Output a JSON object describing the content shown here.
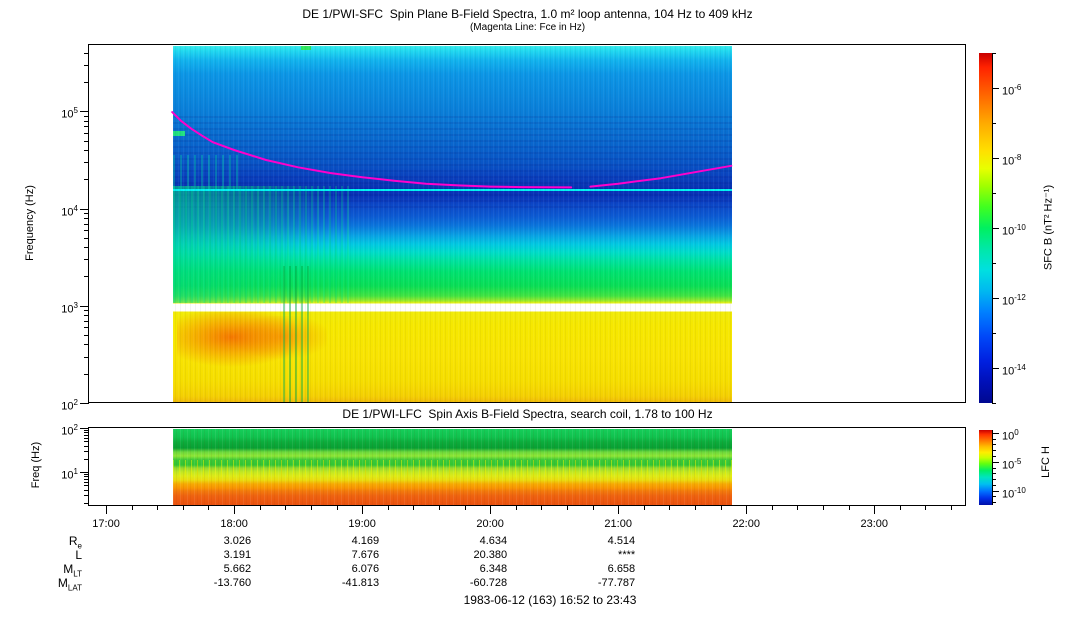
{
  "header": {
    "title": "DE 1/PWI-SFC  Spin Plane B-Field Spectra, 1.0 m² loop antenna, 104 Hz to 409 kHz",
    "subtitle": "(Magenta Line: Fce in Hz)"
  },
  "xaxis": {
    "start_time": "16:52",
    "end_time": "23:43",
    "labels": [
      "17:00",
      "18:00",
      "19:00",
      "20:00",
      "21:00",
      "22:00",
      "23:00"
    ],
    "minor_tick_minutes": 12,
    "data_coverage": [
      "17:31",
      "21:53"
    ]
  },
  "chart_data": [
    {
      "type": "heatmap",
      "panel": "SFC",
      "title": "DE 1/PWI-SFC  Spin Plane B-Field Spectra, 1.0 m² loop antenna, 104 Hz to 409 kHz",
      "subtitle": "(Magenta Line: Fce in Hz)",
      "ylabel": "Frequency (Hz)",
      "yscale": "log",
      "ylim_hz": [
        104,
        409000
      ],
      "ytick_exponents": [
        2,
        3,
        4,
        5
      ],
      "colormap": "rainbow",
      "colorbar": {
        "label": "SFC B (nT² Hz⁻¹)",
        "tick_exponents": [
          -6,
          -8,
          -10,
          -12,
          -14
        ],
        "range_exponents": [
          -15,
          -5
        ]
      },
      "fce_line": {
        "label": "Fce in Hz",
        "color": "#FF00CC",
        "segments": [
          [
            [
              "17:31",
              98000
            ],
            [
              "17:35",
              80000
            ],
            [
              "17:40",
              66000
            ],
            [
              "17:45",
              56000
            ],
            [
              "17:50",
              48000
            ],
            [
              "18:00",
              40000
            ],
            [
              "18:15",
              31500
            ],
            [
              "18:30",
              26500
            ],
            [
              "18:45",
              23200
            ],
            [
              "19:00",
              21000
            ],
            [
              "19:15",
              19300
            ],
            [
              "19:30",
              18000
            ],
            [
              "19:45",
              17300
            ],
            [
              "20:00",
              16800
            ],
            [
              "20:15",
              16600
            ],
            [
              "20:38",
              16500
            ]
          ],
          [
            [
              "20:47",
              16800
            ],
            [
              "21:00",
              18000
            ],
            [
              "21:20",
              20500
            ],
            [
              "21:40",
              24500
            ],
            [
              "21:53",
              27500
            ]
          ]
        ]
      },
      "features": {
        "cyan_line_hz": 16000,
        "white_gap_band_hz": [
          900,
          1100
        ],
        "regions": [
          {
            "freq_hz": "104-900",
            "desc": "intense broadband yellow emission ~1e-7; orange core ~1e-6.5 from 17:35-19:00"
          },
          {
            "freq_hz": "900-1100",
            "desc": "white horizontal data-gap band"
          },
          {
            "freq_hz": "1100-8000",
            "desc": "green hiss ~1e-10 grading to cyan; chorus/streaks up to 10 kHz before 18:45"
          },
          {
            "freq_hz": "16000",
            "desc": "narrow bright cyan emission line ~1e-11"
          },
          {
            "freq_hz": "20000-200000",
            "desc": "dark blue background 1e-13 to 1e-14 with banded structure"
          },
          {
            "freq_hz": "200000-409000",
            "desc": "cyan-blue background ~1e-12 near top edge"
          }
        ]
      }
    },
    {
      "type": "heatmap",
      "panel": "LFC",
      "title": "DE 1/PWI-LFC  Spin Axis B-Field Spectra, search coil, 1.78 to 100 Hz",
      "ylabel": "Freq (Hz)",
      "yscale": "log",
      "ylim_hz": [
        1.78,
        100
      ],
      "ytick_exponents": [
        1,
        2
      ],
      "colormap": "rainbow",
      "colorbar": {
        "label": "LFC H",
        "tick_exponents": [
          0,
          -5,
          -10
        ],
        "range_exponents": [
          -12.5,
          0.5
        ]
      },
      "bands_top_to_bottom": [
        {
          "freq_hz": [
            48,
            100
          ],
          "color": "green"
        },
        {
          "freq_hz": [
            28,
            48
          ],
          "color": "dark green"
        },
        {
          "freq_hz": [
            19,
            28
          ],
          "color": "light yellow-green"
        },
        {
          "freq_hz": [
            13,
            19
          ],
          "color": "green with yellow vertical streaks"
        },
        {
          "freq_hz": [
            9,
            13
          ],
          "color": "yellow-green"
        },
        {
          "freq_hz": [
            5.6,
            9
          ],
          "color": "yellow"
        },
        {
          "freq_hz": [
            3.7,
            5.6
          ],
          "color": "orange"
        },
        {
          "freq_hz": [
            1.78,
            3.7
          ],
          "color": "red-orange"
        }
      ]
    }
  ],
  "ephemeris": {
    "value_columns_at": [
      "18:00",
      "19:00",
      "20:00",
      "21:00"
    ],
    "rows": [
      {
        "label": "R",
        "sub": "e",
        "values": [
          "3.026",
          "4.169",
          "4.634",
          "4.514"
        ]
      },
      {
        "label": "L",
        "sub": "",
        "values": [
          "3.191",
          "7.676",
          "20.380",
          "****"
        ]
      },
      {
        "label": "M",
        "sub": "LT",
        "values": [
          "5.662",
          "6.076",
          "6.348",
          "6.658"
        ]
      },
      {
        "label": "M",
        "sub": "LAT",
        "values": [
          "-13.760",
          "-41.813",
          "-60.728",
          "-77.787"
        ]
      }
    ]
  },
  "footer": {
    "text": "1983-06-12 (163) 16:52 to 23:43"
  },
  "colors": {
    "fce_line": "#FF00CC",
    "cyan_line": "#00F2F2",
    "frame": "#000000",
    "background": "#FFFFFF"
  }
}
